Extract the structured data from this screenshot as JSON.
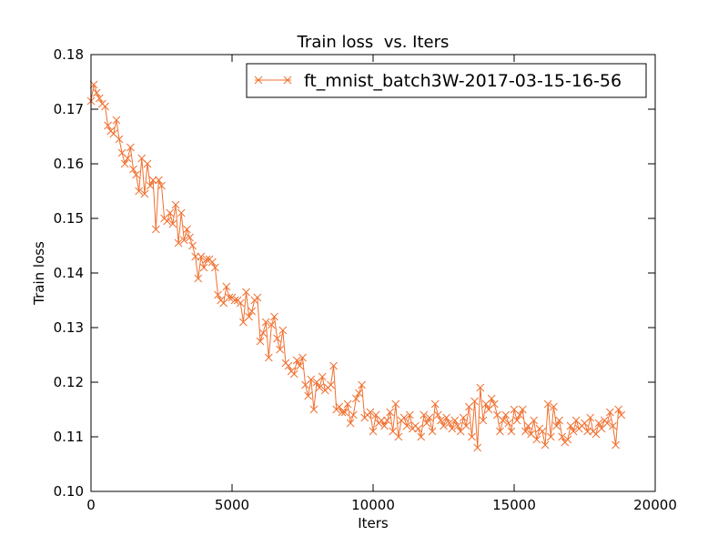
{
  "chart_data": {
    "type": "line",
    "title": "Train loss  vs. Iters",
    "xlabel": "Iters",
    "ylabel": "Train loss",
    "xlim": [
      0,
      20000
    ],
    "ylim": [
      0.1,
      0.18
    ],
    "xticks": [
      0,
      5000,
      10000,
      15000,
      20000
    ],
    "yticks": [
      0.1,
      0.11,
      0.12,
      0.13,
      0.14,
      0.15,
      0.16,
      0.17,
      0.18
    ],
    "xtick_labels": [
      "0",
      "5000",
      "10000",
      "15000",
      "20000"
    ],
    "ytick_labels": [
      "0.10",
      "0.11",
      "0.12",
      "0.13",
      "0.14",
      "0.15",
      "0.16",
      "0.17",
      "0.18"
    ],
    "grid": false,
    "legend_position": "top-right",
    "series": [
      {
        "name": "ft_mnist_batch3W-2017-03-15-16-56",
        "color": "#f07030",
        "marker": "x",
        "x_start": 0,
        "x_step": 100,
        "values": [
          0.1715,
          0.1745,
          0.173,
          0.172,
          0.171,
          0.1705,
          0.167,
          0.166,
          0.1655,
          0.168,
          0.1645,
          0.162,
          0.16,
          0.161,
          0.163,
          0.159,
          0.158,
          0.155,
          0.161,
          0.1545,
          0.16,
          0.156,
          0.157,
          0.148,
          0.157,
          0.156,
          0.15,
          0.1495,
          0.151,
          0.149,
          0.1525,
          0.1455,
          0.151,
          0.146,
          0.148,
          0.1465,
          0.145,
          0.143,
          0.139,
          0.143,
          0.141,
          0.1425,
          0.1425,
          0.142,
          0.141,
          0.136,
          0.135,
          0.1345,
          0.1375,
          0.1355,
          0.1355,
          0.135,
          0.135,
          0.1345,
          0.131,
          0.1365,
          0.132,
          0.133,
          0.135,
          0.1355,
          0.1275,
          0.129,
          0.131,
          0.1245,
          0.1305,
          0.132,
          0.128,
          0.126,
          0.1295,
          0.1235,
          0.123,
          0.122,
          0.1215,
          0.124,
          0.123,
          0.1245,
          0.1195,
          0.1175,
          0.1205,
          0.115,
          0.12,
          0.119,
          0.121,
          0.1185,
          0.119,
          0.1195,
          0.123,
          0.115,
          0.1155,
          0.1145,
          0.1145,
          0.116,
          0.1125,
          0.114,
          0.117,
          0.118,
          0.1195,
          0.1135,
          0.114,
          0.1145,
          0.111,
          0.114,
          0.1125,
          0.113,
          0.112,
          0.113,
          0.1145,
          0.111,
          0.116,
          0.11,
          0.113,
          0.1135,
          0.112,
          0.114,
          0.1115,
          0.112,
          0.1115,
          0.11,
          0.114,
          0.1125,
          0.1135,
          0.111,
          0.116,
          0.114,
          0.113,
          0.112,
          0.1135,
          0.1125,
          0.1115,
          0.113,
          0.112,
          0.111,
          0.1135,
          0.112,
          0.1155,
          0.11,
          0.1165,
          0.108,
          0.119,
          0.113,
          0.116,
          0.115,
          0.117,
          0.116,
          0.114,
          0.111,
          0.113,
          0.114,
          0.1125,
          0.111,
          0.115,
          0.113,
          0.114,
          0.115,
          0.111,
          0.112,
          0.1105,
          0.113,
          0.1095,
          0.1115,
          0.111,
          0.1085,
          0.116,
          0.11,
          0.1155,
          0.112,
          0.113,
          0.11,
          0.109,
          0.1095,
          0.112,
          0.111,
          0.113,
          0.1115,
          0.112,
          0.1125,
          0.111,
          0.1135,
          0.111,
          0.1105,
          0.1125,
          0.1115,
          0.113,
          0.1125,
          0.1145,
          0.112,
          0.1085,
          0.115,
          0.114
        ]
      }
    ]
  }
}
